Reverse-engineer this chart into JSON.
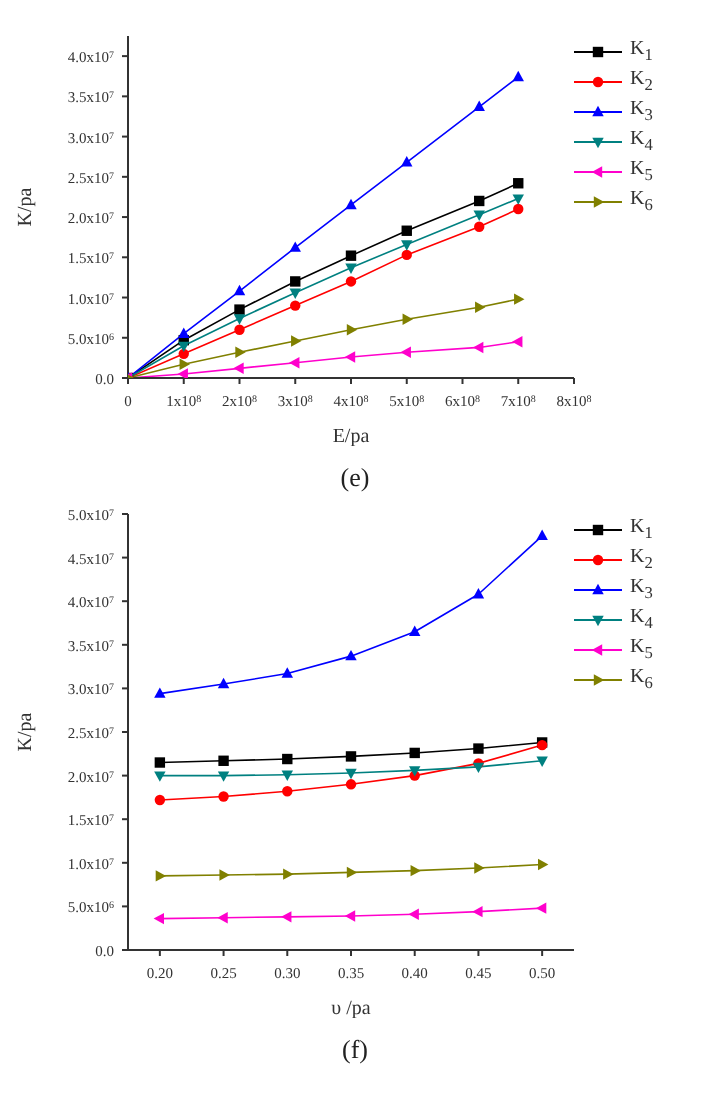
{
  "chart_data": [
    {
      "type": "line",
      "xlabel": "E/pa",
      "ylabel": "K/pa",
      "annotations": [
        "(e)"
      ],
      "legend": "right",
      "line_style": "solid",
      "grid": false,
      "x": [
        0,
        100000000,
        200000000,
        300000000,
        400000000,
        500000000,
        630000000,
        700000000
      ],
      "xlim": [
        0,
        800000000
      ],
      "xticks": [
        0,
        {
          "value": 100000000,
          "label": "1x10$^{8}$"
        },
        {
          "value": 200000000,
          "label": "2x10$^{8}$"
        },
        {
          "value": 300000000,
          "label": "3x10$^{8}$"
        },
        {
          "value": 400000000,
          "label": "4x10$^{8}$"
        },
        {
          "value": 500000000,
          "label": "5x10$^{8}$"
        },
        {
          "value": 600000000,
          "label": "6x10$^{8}$"
        },
        {
          "value": 700000000,
          "label": "7x10$^{8}$"
        },
        {
          "value": 800000000,
          "label": "8x10$^{8}$"
        }
      ],
      "ylim": [
        0,
        42500000
      ],
      "yticks": [
        {
          "value": 0,
          "label": "0.0"
        },
        {
          "value": 5000000,
          "label": "5.0x10$^{6}$"
        },
        {
          "value": 10000000,
          "label": "1.0x10$^{7}$"
        },
        {
          "value": 15000000,
          "label": "1.5x10$^{7}$"
        },
        {
          "value": 20000000,
          "label": "2.0x10$^{7}$"
        },
        {
          "value": 25000000,
          "label": "2.5x10$^{7}$"
        },
        {
          "value": 30000000,
          "label": "3.0x10$^{7}$"
        },
        {
          "value": 35000000,
          "label": "3.5x10$^{7}$"
        },
        {
          "value": 40000000,
          "label": "4.0x10$^{7}$"
        }
      ],
      "series": [
        {
          "name": "K$_{1}$",
          "color": "#000000",
          "marker": "square",
          "values": [
            0,
            4700000,
            8500000,
            12000000,
            15200000,
            18300000,
            22000000,
            24200000
          ]
        },
        {
          "name": "K$_{2}$",
          "color": "#ff0000",
          "marker": "circle",
          "values": [
            0,
            3000000,
            6000000,
            9000000,
            12000000,
            15300000,
            18800000,
            21000000
          ]
        },
        {
          "name": "K$_{3}$",
          "color": "#0000ff",
          "marker": "triangle",
          "values": [
            0,
            5500000,
            10800000,
            16200000,
            21500000,
            26800000,
            33700000,
            37400000
          ]
        },
        {
          "name": "K$_{4}$",
          "color": "#008080",
          "marker": "triangle-down",
          "values": [
            0,
            4000000,
            7400000,
            10600000,
            13700000,
            16600000,
            20300000,
            22300000
          ]
        },
        {
          "name": "K$_{5}$",
          "color": "#ff00cc",
          "marker": "triangle-left",
          "values": [
            0,
            500000,
            1200000,
            1900000,
            2600000,
            3200000,
            3800000,
            4500000
          ]
        },
        {
          "name": "K$_{6}$",
          "color": "#808000",
          "marker": "triangle-right",
          "values": [
            0,
            1700000,
            3200000,
            4600000,
            6000000,
            7300000,
            8800000,
            9800000
          ]
        }
      ]
    },
    {
      "type": "line",
      "xlabel": "υ /pa",
      "ylabel": "K/pa",
      "annotations": [
        "(f)"
      ],
      "legend": "right",
      "line_style": "solid",
      "grid": false,
      "x": [
        0.2,
        0.25,
        0.3,
        0.35,
        0.4,
        0.45,
        0.5
      ],
      "xlim": [
        0.175,
        0.525
      ],
      "xticks": [
        {
          "value": 0.2,
          "label": "0.20"
        },
        {
          "value": 0.25,
          "label": "0.25"
        },
        {
          "value": 0.3,
          "label": "0.30"
        },
        {
          "value": 0.35,
          "label": "0.35"
        },
        {
          "value": 0.4,
          "label": "0.40"
        },
        {
          "value": 0.45,
          "label": "0.45"
        },
        {
          "value": 0.5,
          "label": "0.50"
        }
      ],
      "ylim": [
        0,
        50000000
      ],
      "yticks": [
        {
          "value": 0,
          "label": "0.0"
        },
        {
          "value": 5000000,
          "label": "5.0x10$^{6}$"
        },
        {
          "value": 10000000,
          "label": "1.0x10$^{7}$"
        },
        {
          "value": 15000000,
          "label": "1.5x10$^{7}$"
        },
        {
          "value": 20000000,
          "label": "2.0x10$^{7}$"
        },
        {
          "value": 25000000,
          "label": "2.5x10$^{7}$"
        },
        {
          "value": 30000000,
          "label": "3.0x10$^{7}$"
        },
        {
          "value": 35000000,
          "label": "3.5x10$^{7}$"
        },
        {
          "value": 40000000,
          "label": "4.0x10$^{7}$"
        },
        {
          "value": 45000000,
          "label": "4.5x10$^{7}$"
        },
        {
          "value": 50000000,
          "label": "5.0x10$^{7}$"
        }
      ],
      "series": [
        {
          "name": "K$_{1}$",
          "color": "#000000",
          "marker": "square",
          "values": [
            21500000,
            21700000,
            21900000,
            22200000,
            22600000,
            23100000,
            23800000
          ]
        },
        {
          "name": "K$_{2}$",
          "color": "#ff0000",
          "marker": "circle",
          "values": [
            17200000,
            17600000,
            18200000,
            19000000,
            20000000,
            21400000,
            23500000
          ]
        },
        {
          "name": "K$_{3}$",
          "color": "#0000ff",
          "marker": "triangle",
          "values": [
            29400000,
            30500000,
            31700000,
            33700000,
            36500000,
            40800000,
            47500000
          ]
        },
        {
          "name": "K$_{4}$",
          "color": "#008080",
          "marker": "triangle-down",
          "values": [
            20000000,
            20000000,
            20100000,
            20300000,
            20600000,
            21000000,
            21700000
          ]
        },
        {
          "name": "K$_{5}$",
          "color": "#ff00cc",
          "marker": "triangle-left",
          "values": [
            3600000,
            3700000,
            3800000,
            3900000,
            4100000,
            4400000,
            4800000
          ]
        },
        {
          "name": "K$_{6}$",
          "color": "#808000",
          "marker": "triangle-right",
          "values": [
            8500000,
            8600000,
            8700000,
            8900000,
            9100000,
            9400000,
            9800000
          ]
        }
      ]
    }
  ]
}
